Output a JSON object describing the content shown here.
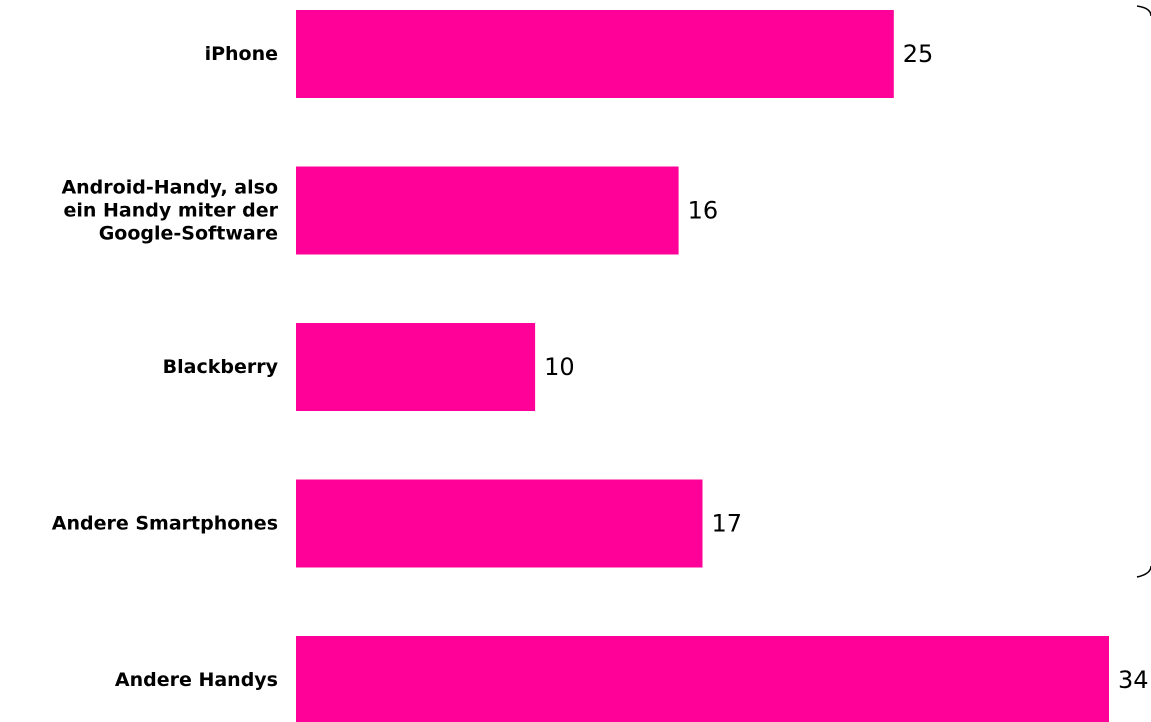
{
  "chart_data": {
    "type": "bar",
    "orientation": "horizontal",
    "categories": [
      [
        "iPhone"
      ],
      [
        "Android-Handy, also",
        "ein Handy miter der",
        "Google-Software"
      ],
      [
        "Blackberry"
      ],
      [
        "Andere Smartphones"
      ],
      [
        "Andere Handys"
      ]
    ],
    "values": [
      25,
      16,
      10,
      17,
      34
    ],
    "value_labels": [
      "25",
      "16",
      "10",
      "17",
      "34"
    ],
    "xlim": [
      0,
      34
    ],
    "grid": false,
    "legend": "none",
    "colors": {
      "bar": "#ff0099"
    }
  }
}
